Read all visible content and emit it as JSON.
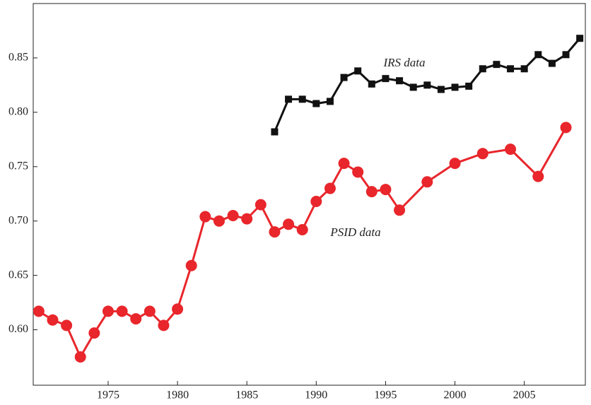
{
  "chart_data": {
    "type": "line",
    "annotations": [
      "IRS data",
      "PSID data"
    ],
    "series": [
      {
        "name": "PSID data",
        "color": "#e8262b",
        "marker": "circle",
        "x": [
          1970,
          1971,
          1972,
          1973,
          1974,
          1975,
          1976,
          1977,
          1978,
          1979,
          1980,
          1981,
          1982,
          1983,
          1984,
          1985,
          1986,
          1987,
          1988,
          1989,
          1990,
          1991,
          1992,
          1993,
          1994,
          1995,
          1996,
          1998,
          2000,
          2002,
          2004,
          2006,
          2008
        ],
        "values": [
          0.617,
          0.609,
          0.604,
          0.575,
          0.597,
          0.617,
          0.617,
          0.61,
          0.617,
          0.604,
          0.619,
          0.659,
          0.704,
          0.7,
          0.705,
          0.702,
          0.715,
          0.69,
          0.697,
          0.692,
          0.718,
          0.73,
          0.753,
          0.745,
          0.727,
          0.729,
          0.71,
          0.736,
          0.753,
          0.762,
          0.766,
          0.741,
          0.786
        ]
      },
      {
        "name": "IRS data",
        "color": "#111111",
        "marker": "square",
        "x": [
          1987,
          1988,
          1989,
          1990,
          1991,
          1992,
          1993,
          1994,
          1995,
          1996,
          1997,
          1998,
          1999,
          2000,
          2001,
          2002,
          2003,
          2004,
          2005,
          2006,
          2007,
          2008,
          2009
        ],
        "values": [
          0.782,
          0.812,
          0.812,
          0.808,
          0.81,
          0.832,
          0.838,
          0.826,
          0.831,
          0.829,
          0.823,
          0.825,
          0.821,
          0.823,
          0.824,
          0.84,
          0.844,
          0.84,
          0.84,
          0.853,
          0.845,
          0.853,
          0.868
        ]
      }
    ],
    "xlim": [
      1969.6,
      2009.4
    ],
    "xticks": [
      1975,
      1980,
      1985,
      1990,
      1995,
      2000,
      2005
    ],
    "ylim": [
      0.549,
      0.9
    ],
    "yticks": [
      {
        "value": 0.6,
        "label": "0.60"
      },
      0.65,
      {
        "value": 0.7,
        "label": "0.70"
      },
      0.75,
      {
        "value": 0.8,
        "label": "0.80"
      },
      0.85
    ]
  }
}
